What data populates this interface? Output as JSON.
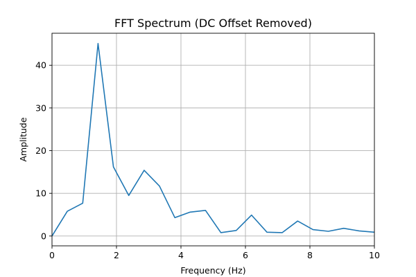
{
  "chart_data": {
    "type": "line",
    "title": "FFT Spectrum (DC Offset Removed)",
    "xlabel": "Frequency (Hz)",
    "ylabel": "Amplitude",
    "xlim": [
      0,
      10
    ],
    "ylim": [
      -2.3,
      47.5
    ],
    "xticks": [
      0,
      2,
      4,
      6,
      8,
      10
    ],
    "xtick_labels": [
      "0",
      "2",
      "4",
      "6",
      "8",
      "10"
    ],
    "yticks": [
      0,
      10,
      20,
      30,
      40
    ],
    "ytick_labels": [
      "0",
      "10",
      "20",
      "30",
      "40"
    ],
    "grid": true,
    "series": [
      {
        "color": "#1f77b4",
        "x": [
          0,
          0.476,
          0.952,
          1.429,
          1.905,
          2.381,
          2.857,
          3.333,
          3.81,
          4.286,
          4.762,
          5.238,
          5.714,
          6.19,
          6.667,
          7.143,
          7.619,
          8.095,
          8.571,
          9.048,
          9.524,
          10
        ],
        "values": [
          0.0,
          5.8,
          7.7,
          45.1,
          16.2,
          9.5,
          15.4,
          11.7,
          4.3,
          5.6,
          6.0,
          0.8,
          1.3,
          4.9,
          0.9,
          0.8,
          3.5,
          1.5,
          1.1,
          1.8,
          1.2,
          0.9
        ]
      }
    ]
  }
}
